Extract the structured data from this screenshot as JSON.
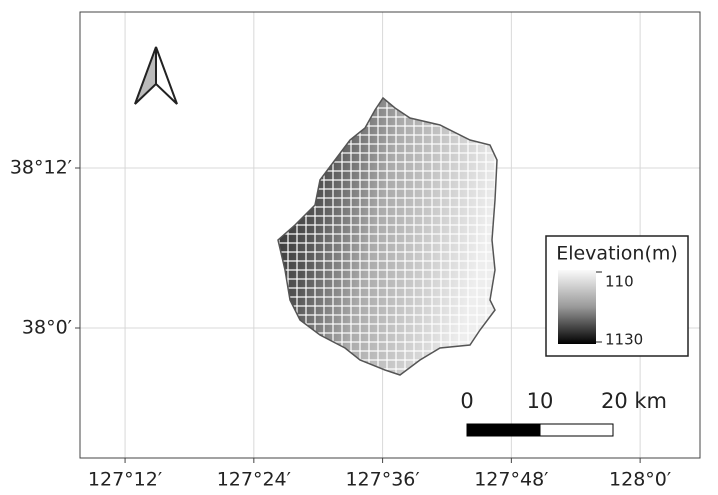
{
  "map": {
    "xlim": [
      127.13,
      128.093
    ],
    "ylim": [
      37.8375,
      38.395
    ],
    "xticks": [
      {
        "value": 127.2,
        "label": "127°12′"
      },
      {
        "value": 127.4,
        "label": "127°24′"
      },
      {
        "value": 127.6,
        "label": "127°36′"
      },
      {
        "value": 127.8,
        "label": "127°48′"
      },
      {
        "value": 128.0,
        "label": "128°0′"
      }
    ],
    "yticks": [
      {
        "value": 38.0,
        "label": "38°0′"
      },
      {
        "value": 38.2,
        "label": "38°12′"
      }
    ],
    "legend": {
      "title": "Elevation(m)",
      "min": 110,
      "max": 1130
    },
    "scale_bar": {
      "ticks": [
        0,
        10,
        {
          "value": 20,
          "label": "20 km"
        }
      ]
    }
  }
}
